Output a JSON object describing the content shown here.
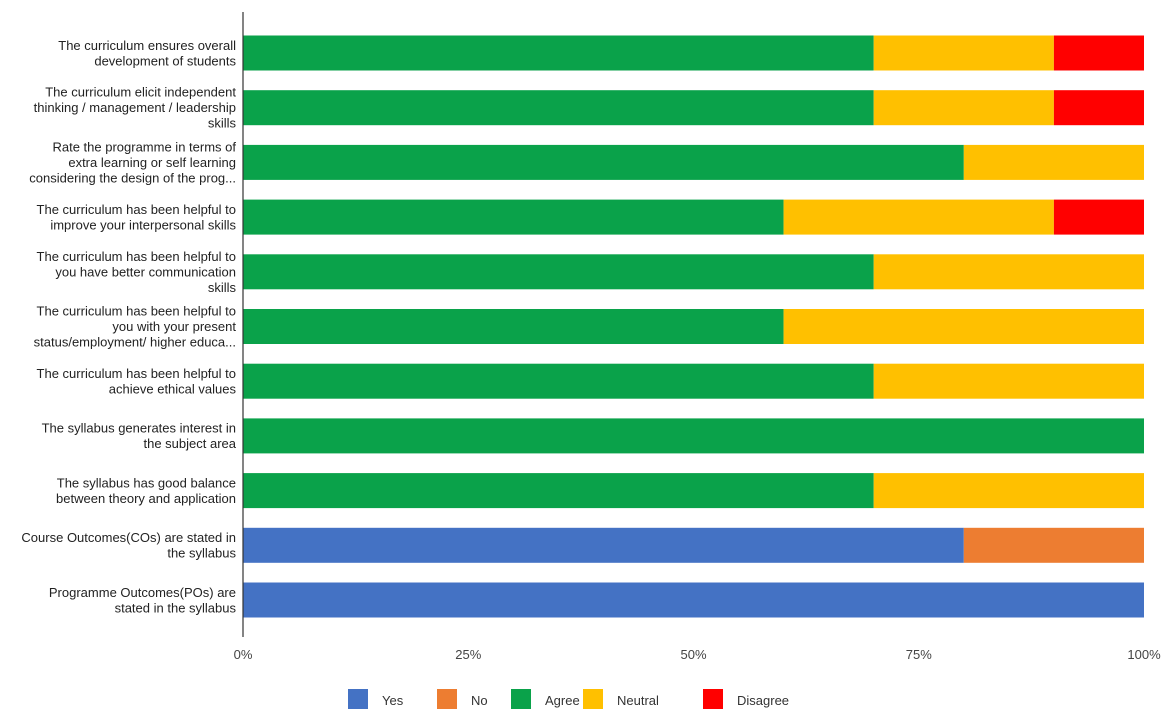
{
  "chart_data": {
    "type": "bar",
    "orientation": "horizontal",
    "stacked": "percent",
    "categories": [
      [
        "The curriculum ensures overall",
        "development of students"
      ],
      [
        "The curriculum elicit independent",
        "thinking / management / leadership",
        "skills"
      ],
      [
        "Rate the programme in terms of",
        "extra learning or self learning",
        "considering the design of the prog..."
      ],
      [
        "The curriculum has been helpful to",
        "improve your interpersonal skills"
      ],
      [
        "The curriculum has been helpful to",
        "you have better communication",
        "skills"
      ],
      [
        "The curriculum has been helpful to",
        "you with your present",
        "status/employment/ higher educa..."
      ],
      [
        "The curriculum has been helpful to",
        "achieve ethical values"
      ],
      [
        "The syllabus generates interest in",
        "the subject area"
      ],
      [
        "The syllabus has good balance",
        "between theory and application"
      ],
      [
        "Course Outcomes(COs) are stated in",
        "the syllabus"
      ],
      [
        "Programme Outcomes(POs) are",
        "stated in the syllabus"
      ]
    ],
    "series": [
      {
        "name": "Yes",
        "color": "#4472c4",
        "values": [
          0,
          0,
          0,
          0,
          0,
          0,
          0,
          0,
          0,
          80,
          100
        ]
      },
      {
        "name": "No",
        "color": "#ed7d31",
        "values": [
          0,
          0,
          0,
          0,
          0,
          0,
          0,
          0,
          0,
          20,
          0
        ]
      },
      {
        "name": "Agree",
        "color": "#0aa24a",
        "values": [
          70,
          70,
          80,
          60,
          70,
          60,
          70,
          100,
          70,
          0,
          0
        ]
      },
      {
        "name": "Neutral",
        "color": "#ffc000",
        "values": [
          20,
          20,
          20,
          30,
          30,
          40,
          30,
          0,
          30,
          0,
          0
        ]
      },
      {
        "name": "Disagree",
        "color": "#ff0000",
        "values": [
          10,
          10,
          0,
          10,
          0,
          0,
          0,
          0,
          0,
          0,
          0
        ]
      }
    ],
    "x_ticks": [
      "0%",
      "25%",
      "50%",
      "75%",
      "100%"
    ],
    "xlim": [
      0,
      100
    ],
    "grid": false,
    "legend_position": "bottom"
  }
}
